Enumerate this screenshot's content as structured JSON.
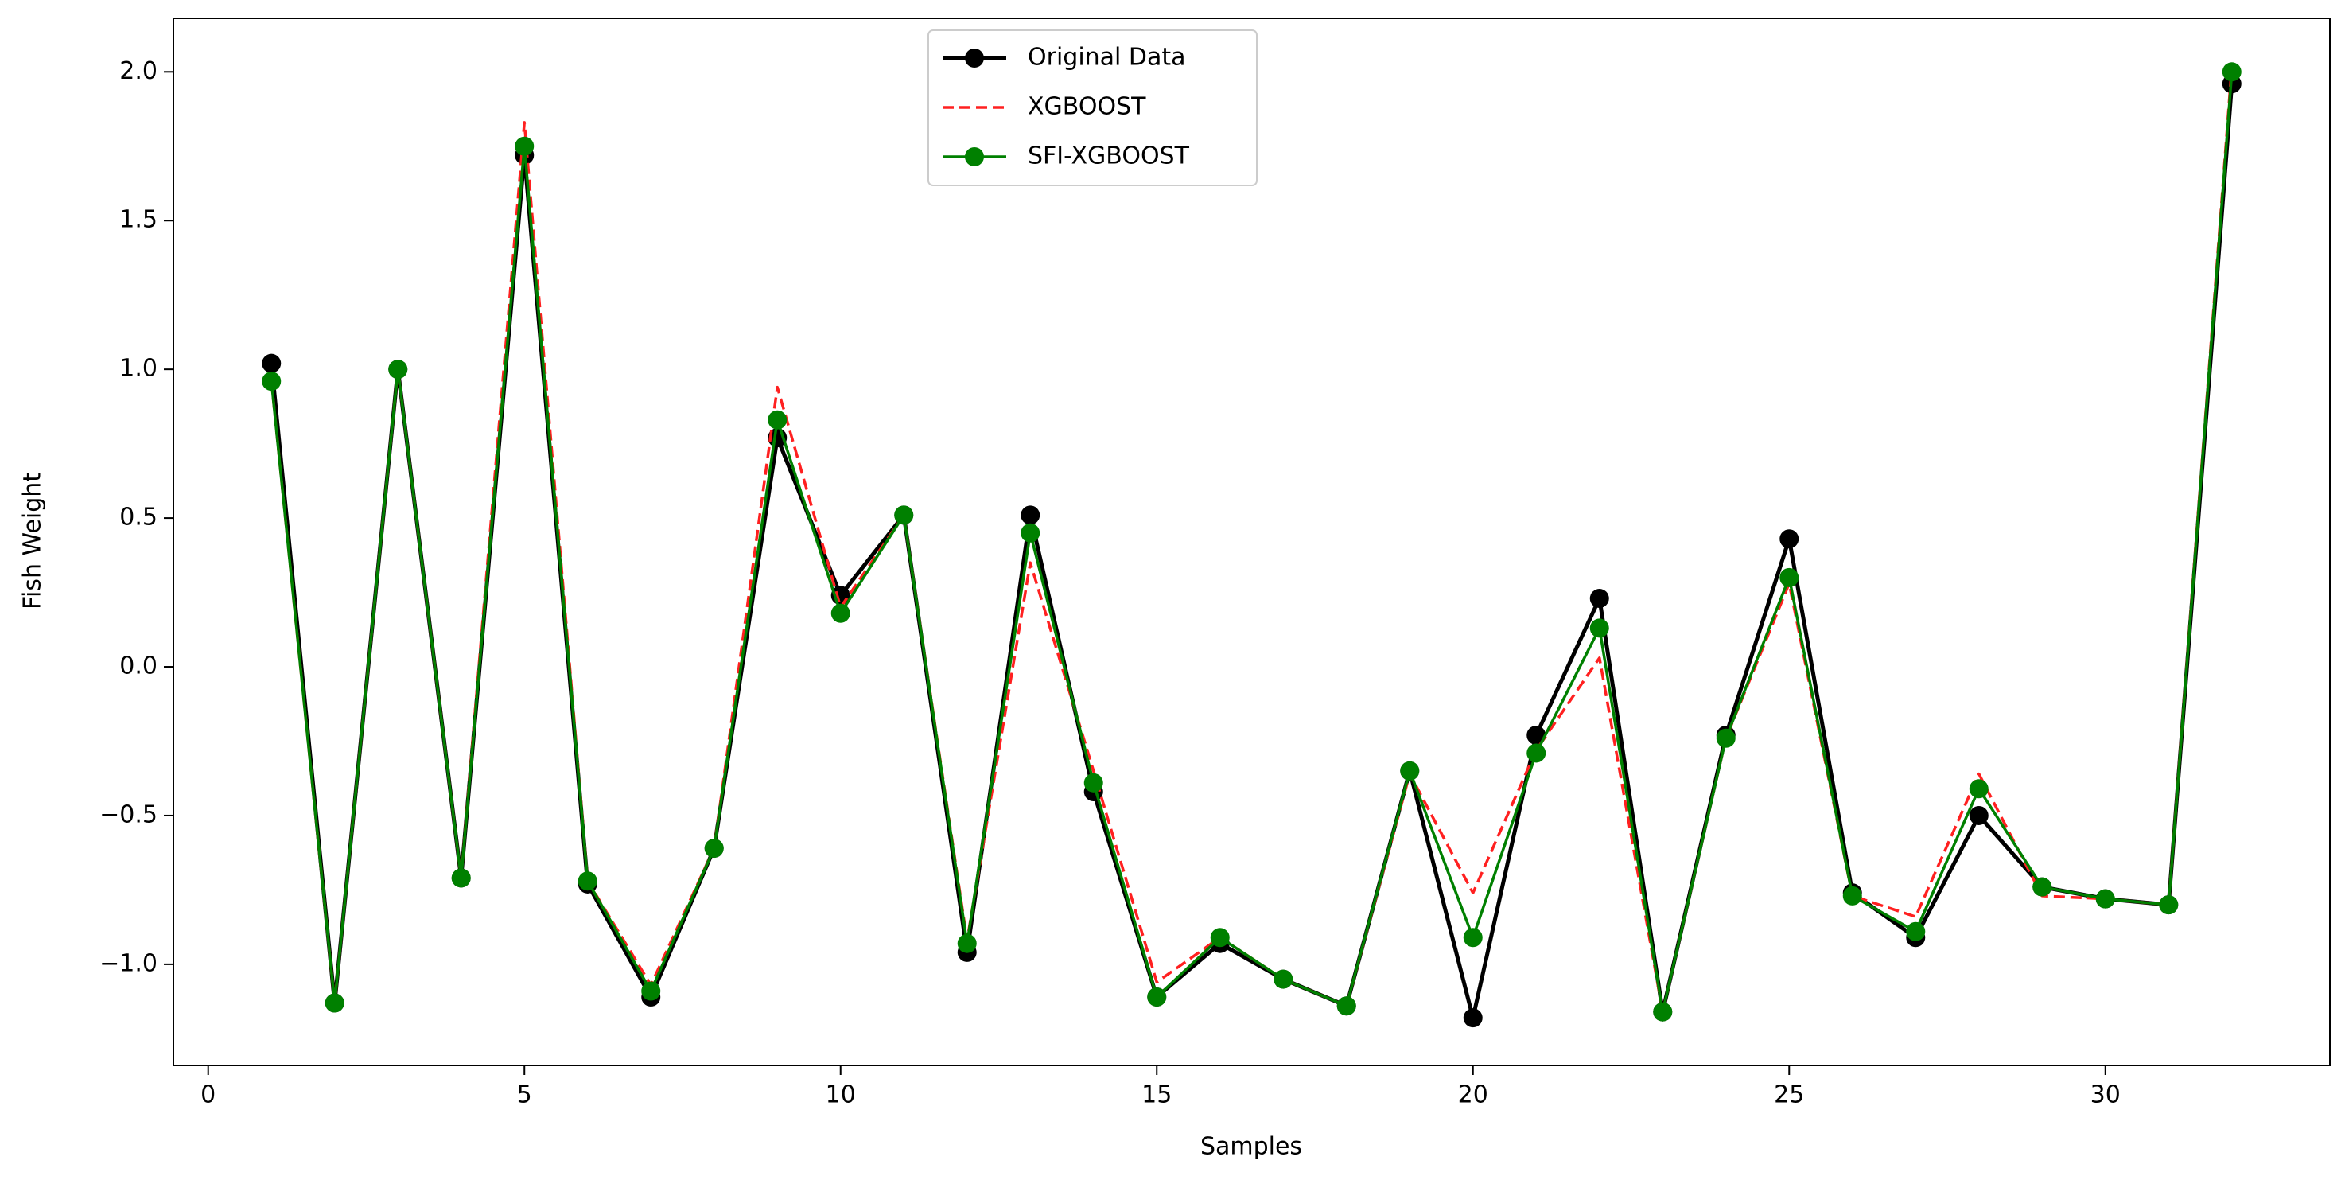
{
  "chart_data": {
    "type": "line",
    "x_label": "Samples",
    "y_label": "Fish Weight",
    "x": [
      1,
      2,
      3,
      4,
      5,
      6,
      7,
      8,
      9,
      10,
      11,
      12,
      13,
      14,
      15,
      16,
      17,
      18,
      19,
      20,
      21,
      22,
      23,
      24,
      25,
      26,
      27,
      28,
      29,
      30,
      31,
      32
    ],
    "series": [
      {
        "name": "Original Data",
        "color": "#000000",
        "linestyle": "solid",
        "marker": "o",
        "values": [
          1.02,
          -1.13,
          1.0,
          -0.71,
          1.72,
          -0.73,
          -1.11,
          -0.61,
          0.77,
          0.24,
          0.51,
          -0.96,
          0.51,
          -0.42,
          -1.11,
          -0.93,
          -1.05,
          -1.14,
          -0.35,
          -1.18,
          -0.23,
          0.23,
          -1.16,
          -0.23,
          0.43,
          -0.76,
          -0.91,
          -0.5,
          -0.74,
          -0.78,
          -0.8,
          1.96
        ]
      },
      {
        "name": "XGBOOST",
        "color": "#ff2020",
        "linestyle": "dashed",
        "marker": null,
        "values": [
          0.96,
          -1.13,
          1.0,
          -0.71,
          1.83,
          -0.72,
          -1.07,
          -0.61,
          0.94,
          0.2,
          0.51,
          -0.92,
          0.35,
          -0.35,
          -1.06,
          -0.91,
          -1.05,
          -1.14,
          -0.36,
          -0.76,
          -0.28,
          0.03,
          -1.16,
          -0.24,
          0.28,
          -0.77,
          -0.84,
          -0.36,
          -0.77,
          -0.78,
          -0.8,
          2.02
        ]
      },
      {
        "name": "SFI-XGBOOST",
        "color": "#008000",
        "linestyle": "solid",
        "marker": "o",
        "values": [
          0.96,
          -1.13,
          1.0,
          -0.71,
          1.75,
          -0.72,
          -1.09,
          -0.61,
          0.83,
          0.18,
          0.51,
          -0.93,
          0.45,
          -0.39,
          -1.11,
          -0.91,
          -1.05,
          -1.14,
          -0.35,
          -0.91,
          -0.29,
          0.13,
          -1.16,
          -0.24,
          0.3,
          -0.77,
          -0.89,
          -0.41,
          -0.74,
          -0.78,
          -0.8,
          2.0
        ]
      }
    ],
    "xlim": [
      -0.55,
      33.55
    ],
    "xticks": [
      0,
      5,
      10,
      15,
      20,
      25,
      30
    ],
    "ylim": [
      -1.34,
      2.18
    ],
    "yticks": [
      {
        "value": -1.0,
        "label": "−1.0"
      },
      {
        "value": -0.5,
        "label": "−0.5"
      },
      {
        "value": 0.0,
        "label": "0.0"
      },
      {
        "value": 0.5,
        "label": "0.5"
      },
      {
        "value": 1.0,
        "label": "1.0"
      },
      {
        "value": 1.5,
        "label": "1.5"
      },
      {
        "value": 2.0,
        "label": "2.0"
      }
    ],
    "grid": false,
    "legend_position": "upper center"
  }
}
